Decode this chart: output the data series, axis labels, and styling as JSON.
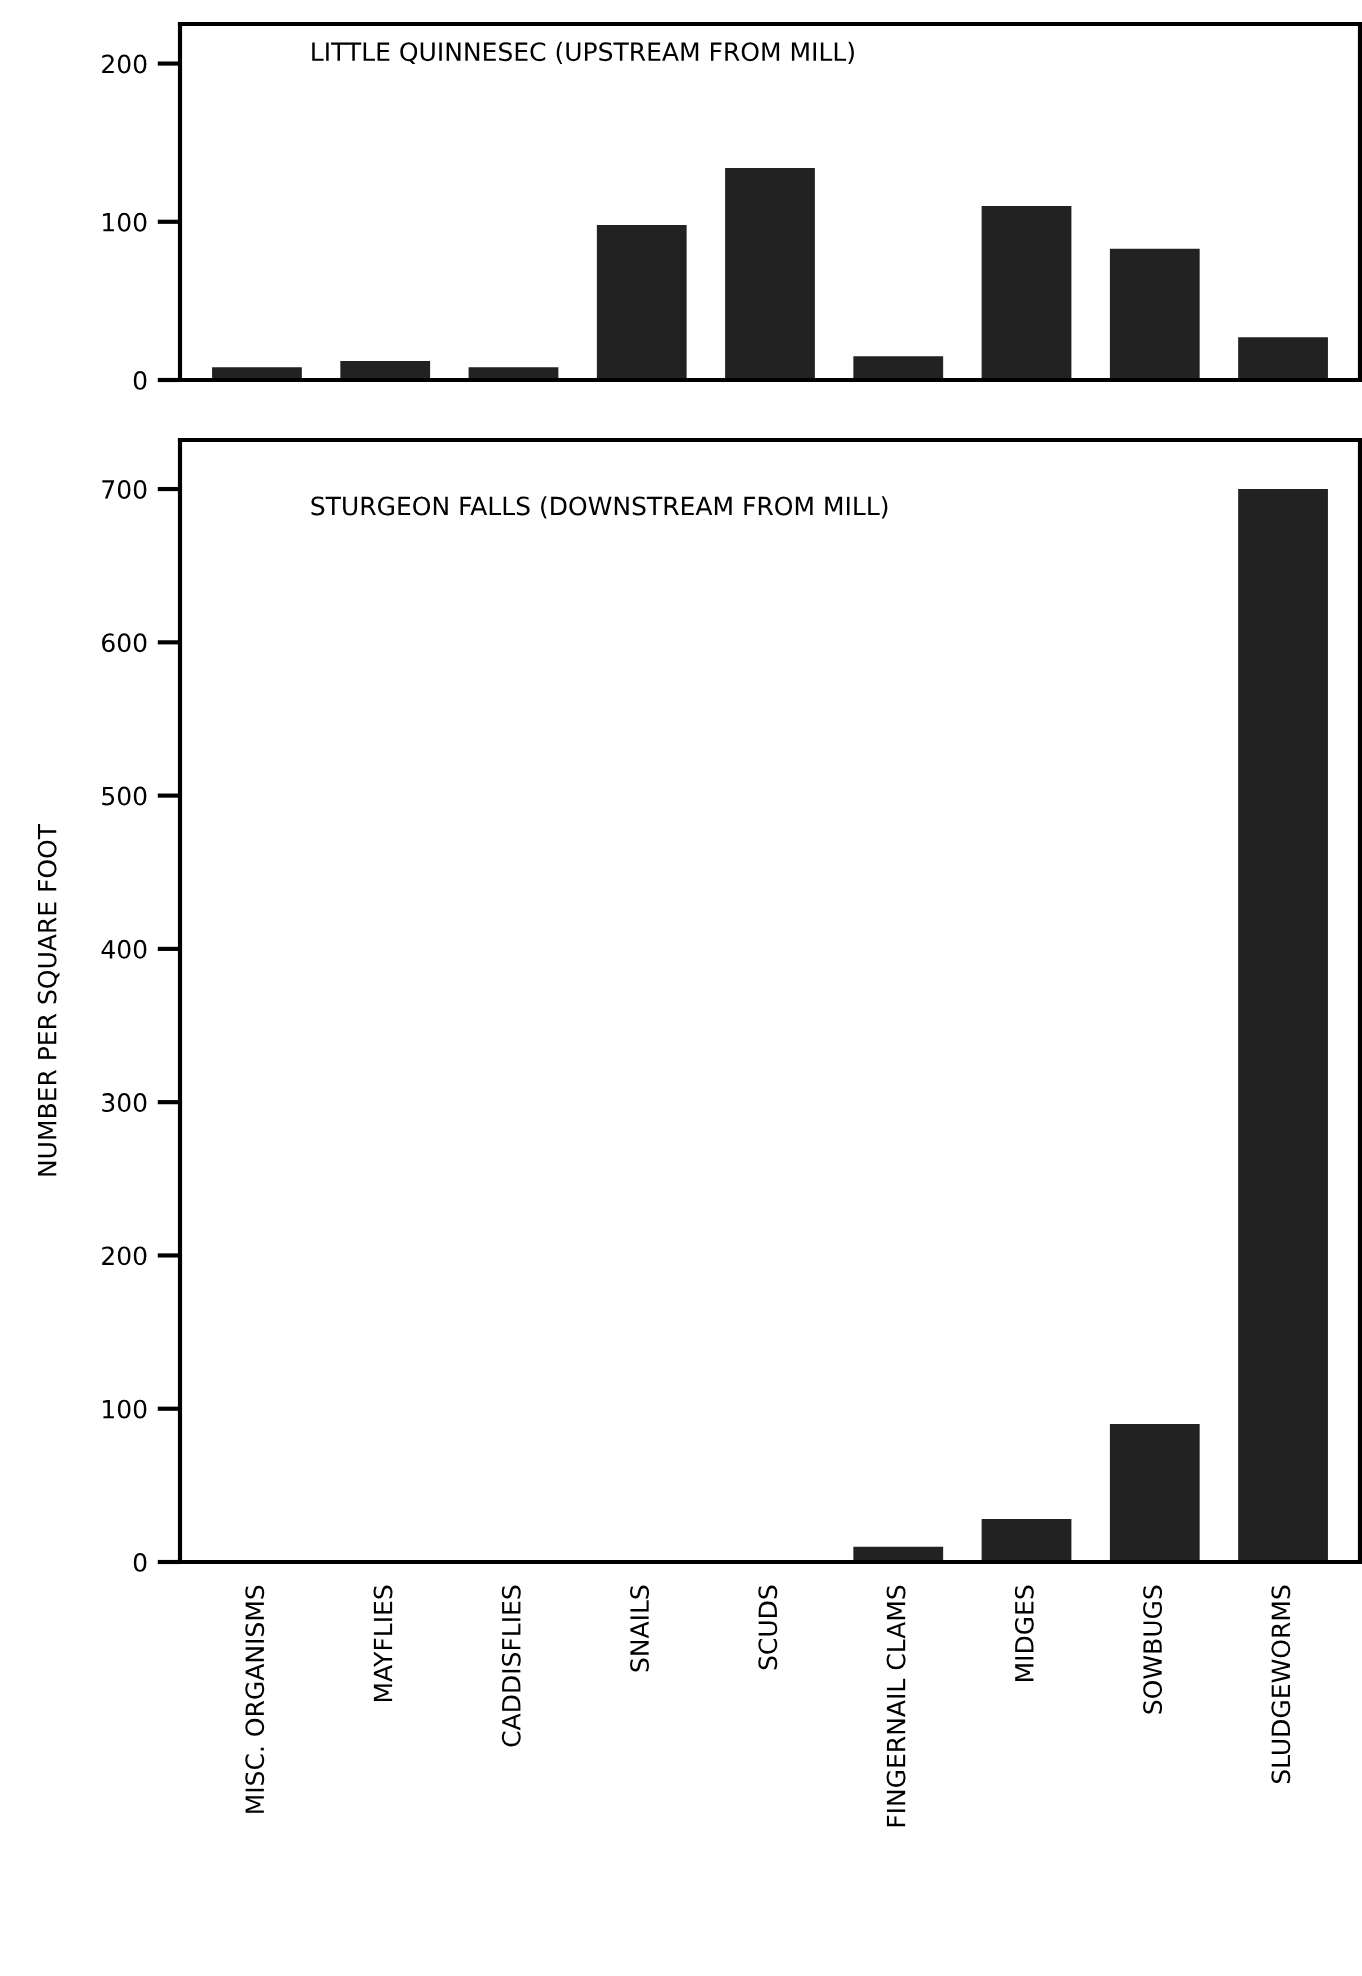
{
  "chart_data": [
    {
      "type": "bar",
      "title": "LITTLE QUINNESEC (UPSTREAM FROM MILL)",
      "categories": [
        null,
        null,
        null,
        null,
        null,
        null,
        null,
        null,
        null
      ],
      "values": [
        8,
        12,
        8,
        98,
        134,
        15,
        110,
        83,
        27
      ],
      "color": "#222222",
      "ylim": [
        0,
        225
      ],
      "yticks": [
        0,
        100,
        200
      ],
      "tick_labels": "y",
      "grid": false
    },
    {
      "type": "bar",
      "title": "STURGEON FALLS (DOWNSTREAM FROM MILL)",
      "ylabel": "NUMBER PER SQUARE FOOT",
      "categories": [
        "MISC. ORGANISMS",
        "MAYFLIES",
        "CADDISFLIES",
        "SNAILS",
        "SCUDS",
        "FINGERNAIL CLAMS",
        "MIDGES",
        "SOWBUGS",
        "SLUDGEWORMS"
      ],
      "values": [
        0,
        0,
        0,
        0,
        0,
        10,
        28,
        90,
        700
      ],
      "color": "#222222",
      "ylim": [
        0,
        732
      ],
      "yticks": [
        0,
        100,
        200,
        300,
        400,
        500,
        600,
        700
      ],
      "grid": false
    }
  ]
}
